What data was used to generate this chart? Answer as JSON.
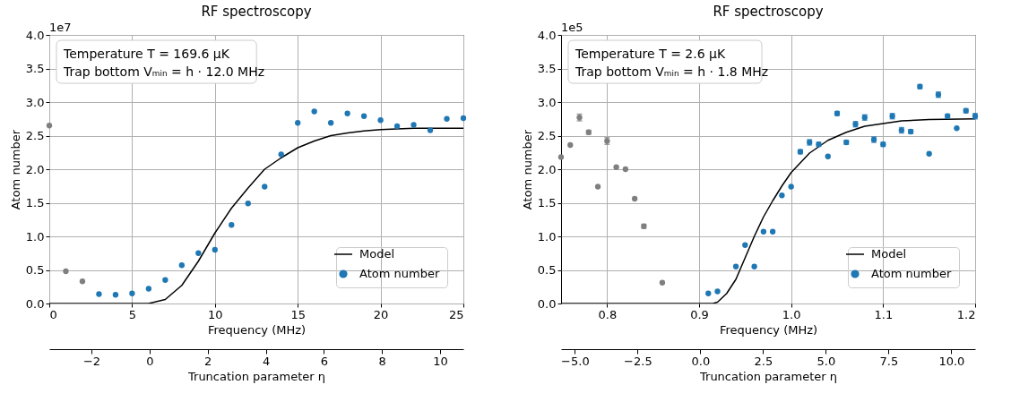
{
  "chart_data": [
    {
      "type": "scatter",
      "title": "RF spectroscopy",
      "xlabel": "Frequency (MHz)",
      "ylabel": "Atom number",
      "x2label": "Truncation parameter η",
      "xlim": [
        0,
        25
      ],
      "xticks": [
        0,
        5,
        10,
        15,
        20,
        25
      ],
      "ylim": [
        0,
        4
      ],
      "yticks": [
        {
          "value": 0,
          "label": "0.0"
        },
        {
          "value": 0.5,
          "label": "0.5"
        },
        {
          "value": 1,
          "label": "1.0"
        },
        {
          "value": 1.5,
          "label": "1.5"
        },
        {
          "value": 2,
          "label": "2.0"
        },
        {
          "value": 2.5,
          "label": "2.5"
        },
        {
          "value": 3,
          "label": "3.0"
        },
        {
          "value": 3.5,
          "label": "3.5"
        },
        {
          "value": 4,
          "label": "4.0"
        }
      ],
      "x2lim": [
        -3.45,
        10.8
      ],
      "x2ticks": [
        -2,
        0,
        2,
        4,
        6,
        8,
        10
      ],
      "grid": true,
      "legend": "bottom right",
      "marker": "circle",
      "annotations": [
        "1e7",
        "Temperature T = 169.6 µK",
        "Trap bottom Vₘᵢₙ = h · 12.0 MHz"
      ],
      "series": [
        {
          "type": "line",
          "name": "Model",
          "color": "#000000",
          "marker": "none",
          "x": [
            0,
            6,
            7,
            8,
            9,
            10,
            11,
            12,
            13,
            14,
            15,
            16,
            17,
            18,
            19,
            20,
            21,
            22,
            25
          ],
          "values": [
            0,
            0,
            0.06,
            0.27,
            0.63,
            1.05,
            1.42,
            1.72,
            2.0,
            2.17,
            2.32,
            2.42,
            2.5,
            2.54,
            2.57,
            2.59,
            2.6,
            2.61,
            2.61
          ]
        },
        {
          "name": "Atom number",
          "color": "#1f77b4",
          "x": [
            3,
            4,
            5,
            6,
            7,
            8,
            9,
            10,
            11,
            12,
            13,
            14,
            15,
            16,
            17,
            18,
            19,
            20,
            21,
            22,
            23,
            24,
            25
          ],
          "values": [
            0.14,
            0.13,
            0.15,
            0.22,
            0.35,
            0.57,
            0.75,
            0.8,
            1.17,
            1.49,
            1.74,
            2.22,
            2.69,
            2.86,
            2.69,
            2.83,
            2.79,
            2.73,
            2.64,
            2.66,
            2.58,
            2.75,
            2.76
          ]
        },
        {
          "color": "#7f7f7f",
          "x": [
            0,
            1,
            2
          ],
          "values": [
            2.65,
            0.48,
            0.33
          ]
        }
      ]
    },
    {
      "type": "scatter",
      "title": "RF spectroscopy",
      "xlabel": "Frequency (MHz)",
      "ylabel": "Atom number",
      "x2label": "Truncation parameter η",
      "xlim": [
        0.75,
        1.2
      ],
      "xticks": [
        0.8,
        0.9,
        {
          "value": 1,
          "label": "1.0"
        },
        1.1,
        1.2
      ],
      "ylim": [
        0,
        4
      ],
      "yticks": [
        {
          "value": 0,
          "label": "0.0"
        },
        {
          "value": 0.5,
          "label": "0.5"
        },
        {
          "value": 1,
          "label": "1.0"
        },
        {
          "value": 1.5,
          "label": "1.5"
        },
        {
          "value": 2,
          "label": "2.0"
        },
        {
          "value": 2.5,
          "label": "2.5"
        },
        {
          "value": 3,
          "label": "3.0"
        },
        {
          "value": 3.5,
          "label": "3.5"
        },
        {
          "value": 4,
          "label": "4.0"
        }
      ],
      "x2lim": [
        -5.55,
        10.95
      ],
      "x2ticks": [
        {
          "value": -5,
          "label": "−5.0"
        },
        {
          "value": -2.5,
          "label": "−2.5"
        },
        {
          "value": 0,
          "label": "0.0"
        },
        2.5,
        {
          "value": 5,
          "label": "5.0"
        },
        7.5,
        {
          "value": 10,
          "label": "10.0"
        }
      ],
      "grid": true,
      "legend": "bottom right",
      "marker": "circle",
      "annotations": [
        "1e5",
        "Temperature T = 2.6 µK",
        "Trap bottom Vₘᵢₙ = h · 1.8 MHz"
      ],
      "series": [
        {
          "type": "line",
          "name": "Model",
          "color": "#000000",
          "marker": "none",
          "x": [
            0.75,
            0.915,
            0.92,
            0.93,
            0.94,
            0.95,
            0.96,
            0.97,
            0.98,
            0.99,
            1.0,
            1.02,
            1.04,
            1.06,
            1.08,
            1.1,
            1.12,
            1.15,
            1.2
          ],
          "values": [
            0,
            0,
            0.02,
            0.15,
            0.36,
            0.68,
            1.0,
            1.29,
            1.53,
            1.75,
            1.95,
            2.24,
            2.43,
            2.55,
            2.64,
            2.68,
            2.72,
            2.74,
            2.75
          ]
        },
        {
          "name": "Atom number",
          "color": "#1f77b4",
          "x": [
            0.91,
            0.92,
            0.94,
            0.95,
            0.96,
            0.97,
            0.98,
            0.99,
            1.0,
            1.01,
            1.02,
            1.03,
            1.04,
            1.05,
            1.06,
            1.07,
            1.08,
            1.09,
            1.1,
            1.11,
            1.12,
            1.13,
            1.14,
            1.15,
            1.16,
            1.17,
            1.18,
            1.19,
            1.2
          ],
          "values": [
            0.15,
            0.18,
            0.55,
            0.87,
            0.55,
            1.07,
            1.07,
            1.61,
            1.74,
            2.26,
            2.4,
            2.37,
            2.19,
            2.83,
            2.4,
            2.67,
            2.77,
            2.44,
            2.37,
            2.79,
            2.58,
            2.56,
            3.23,
            2.23,
            3.11,
            2.79,
            2.61,
            2.87,
            2.79
          ],
          "errors": [
            null,
            null,
            null,
            null,
            null,
            null,
            null,
            null,
            null,
            0.03,
            0.04,
            0.03,
            null,
            0.03,
            0.03,
            0.04,
            0.04,
            0.04,
            0.03,
            0.04,
            0.04,
            0.03,
            0.03,
            null,
            0.04,
            0.03,
            null,
            0.03,
            0.04
          ]
        },
        {
          "color": "#7f7f7f",
          "x": [
            0.75,
            0.76,
            0.77,
            0.78,
            0.79,
            0.8,
            0.81,
            0.82,
            0.83,
            0.84,
            0.86
          ],
          "values": [
            2.18,
            2.36,
            2.77,
            2.55,
            1.74,
            2.42,
            2.03,
            2.0,
            1.56,
            1.15,
            0.31
          ],
          "errors": [
            null,
            null,
            0.05,
            0.03,
            null,
            0.05,
            null,
            null,
            null,
            0.03,
            null
          ]
        }
      ]
    }
  ]
}
